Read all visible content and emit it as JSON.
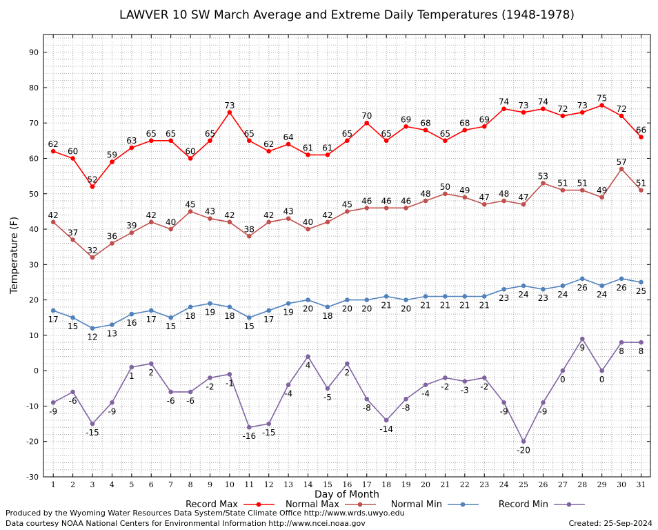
{
  "chart_data": {
    "type": "line",
    "title": "LAWVER 10 SW March Average and Extreme Daily Temperatures (1948-1978)",
    "xlabel": "Day of Month",
    "ylabel": "Temperature (F)",
    "x": [
      1,
      2,
      3,
      4,
      5,
      6,
      7,
      8,
      9,
      10,
      11,
      12,
      13,
      14,
      15,
      16,
      17,
      18,
      19,
      20,
      21,
      22,
      23,
      24,
      25,
      26,
      27,
      28,
      29,
      30,
      31
    ],
    "ylim": [
      -30,
      95
    ],
    "yticks": [
      -30,
      -20,
      -10,
      0,
      10,
      20,
      30,
      40,
      50,
      60,
      70,
      80,
      90
    ],
    "grid": true,
    "legend_position": "bottom",
    "series": [
      {
        "name": "Record Max",
        "color": "#ff0000",
        "label_pos": "above",
        "values": [
          62,
          60,
          52,
          59,
          63,
          65,
          65,
          60,
          65,
          73,
          65,
          62,
          64,
          61,
          61,
          65,
          70,
          65,
          69,
          68,
          65,
          68,
          69,
          74,
          73,
          74,
          72,
          73,
          75,
          72,
          66
        ]
      },
      {
        "name": "Normal Max",
        "color": "#c0504d",
        "label_pos": "above",
        "values": [
          42,
          37,
          32,
          36,
          39,
          42,
          40,
          45,
          43,
          42,
          38,
          42,
          43,
          40,
          42,
          45,
          46,
          46,
          46,
          48,
          50,
          49,
          47,
          48,
          47,
          53,
          51,
          51,
          49,
          57,
          51
        ]
      },
      {
        "name": "Normal Min",
        "color": "#4f81bd",
        "label_pos": "below",
        "values": [
          17,
          15,
          12,
          13,
          16,
          17,
          15,
          18,
          19,
          18,
          15,
          17,
          19,
          20,
          18,
          20,
          20,
          21,
          20,
          21,
          21,
          21,
          21,
          23,
          24,
          23,
          24,
          26,
          24,
          26,
          25
        ]
      },
      {
        "name": "Record Min",
        "color": "#8064a2",
        "label_pos": "below",
        "values": [
          -9,
          -6,
          -15,
          -9,
          1,
          2,
          -6,
          -6,
          -2,
          -1,
          -16,
          -15,
          -4,
          4,
          -5,
          2,
          -8,
          -14,
          -8,
          -4,
          -2,
          -3,
          -2,
          -9,
          -20,
          -9,
          0,
          9,
          0,
          8,
          8
        ]
      }
    ]
  },
  "footer": {
    "produced_by": "Produced by the Wyoming Water Resources Data System/State Climate Office http://www.wrds.uwyo.edu",
    "data_courtesy": "Data courtesy NOAA National Centers for Environmental Information http://www.ncei.noaa.gov",
    "created": "Created:  25-Sep-2024"
  }
}
